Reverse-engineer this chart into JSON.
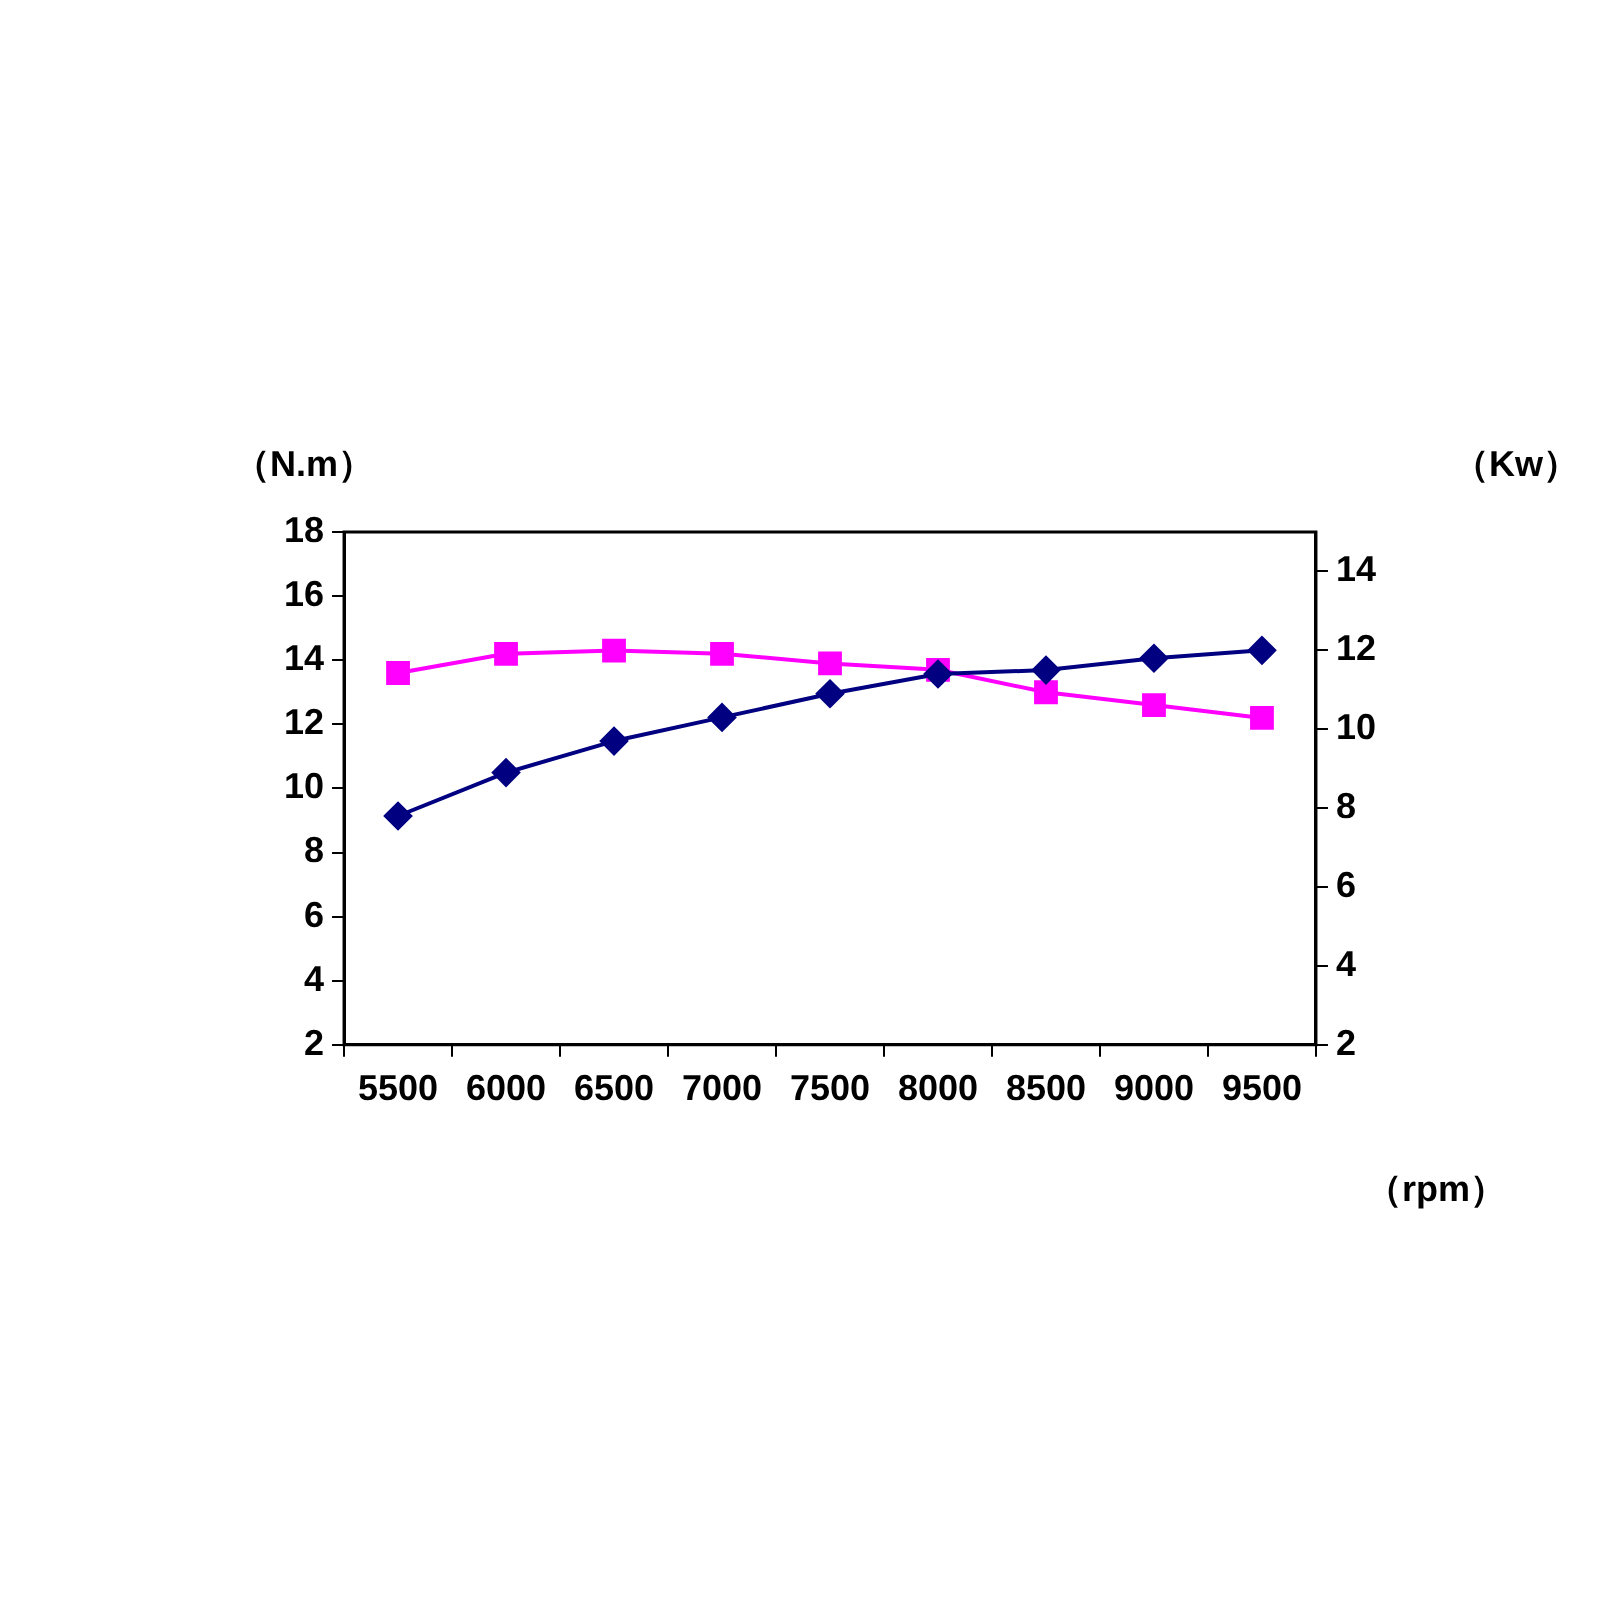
{
  "chart_data": {
    "type": "line",
    "xlabel": "（rpm）",
    "ylabel": "（N.m）",
    "y2label": "（Kw）",
    "categories": [
      "5500",
      "6000",
      "6500",
      "7000",
      "7500",
      "8000",
      "8500",
      "9000",
      "9500"
    ],
    "series": [
      {
        "color": "#ff00ff",
        "marker": "square",
        "values": [
          13.6,
          14.2,
          14.3,
          14.2,
          13.9,
          13.7,
          13.0,
          12.6,
          12.2
        ]
      },
      {
        "color": "#000080",
        "marker": "diamond",
        "axis": "y2",
        "values": [
          7.8,
          8.9,
          9.7,
          10.3,
          10.9,
          11.4,
          11.5,
          11.8,
          12.0
        ]
      }
    ],
    "ylim": [
      2,
      18
    ],
    "yticks": [
      2,
      4,
      6,
      8,
      10,
      12,
      14,
      16,
      18
    ],
    "y2lim": [
      2,
      15
    ],
    "y2ticks": [
      2,
      4,
      6,
      8,
      10,
      12,
      14
    ],
    "grid": false,
    "legend": false
  }
}
